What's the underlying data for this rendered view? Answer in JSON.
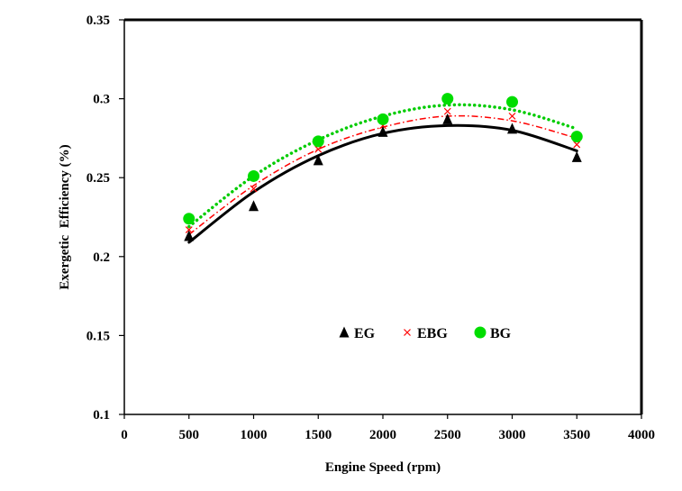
{
  "chart_data": {
    "type": "scatter",
    "title": "",
    "xlabel": "Engine Speed (rpm)",
    "ylabel": "Exergetic  Efficiency (%)",
    "xlim": [
      0,
      4000
    ],
    "ylim": [
      0.1,
      0.35
    ],
    "x_ticks": [
      0,
      500,
      1000,
      1500,
      2000,
      2500,
      3000,
      3500,
      4000
    ],
    "y_ticks": [
      "0.1",
      "0.15",
      "0.2",
      "0.25",
      "0.3",
      "0.35"
    ],
    "grid": false,
    "legend_position": "center",
    "x": [
      500,
      1000,
      1500,
      2000,
      2500,
      3000,
      3500
    ],
    "series": [
      {
        "name": "EG",
        "marker": "triangle",
        "color": "#000000",
        "values": [
          0.213,
          0.232,
          0.261,
          0.279,
          0.287,
          0.281,
          0.263
        ],
        "trend": {
          "style": "solid",
          "color": "#000000",
          "values": [
            0.209,
            0.241,
            0.264,
            0.278,
            0.283,
            0.28,
            0.267
          ]
        }
      },
      {
        "name": "EBG",
        "marker": "x",
        "color": "#ff0000",
        "values": [
          0.217,
          0.243,
          0.268,
          0.283,
          0.292,
          0.289,
          0.271
        ],
        "trend": {
          "style": "dashdot",
          "color": "#ff0000",
          "values": [
            0.214,
            0.245,
            0.268,
            0.282,
            0.289,
            0.286,
            0.275
          ]
        }
      },
      {
        "name": "BG",
        "marker": "circle",
        "color": "#00dd00",
        "values": [
          0.224,
          0.251,
          0.273,
          0.287,
          0.3,
          0.298,
          0.276
        ],
        "trend": {
          "style": "dotted",
          "color": "#00cc00",
          "values": [
            0.219,
            0.251,
            0.274,
            0.289,
            0.296,
            0.293,
            0.281
          ]
        }
      }
    ]
  }
}
